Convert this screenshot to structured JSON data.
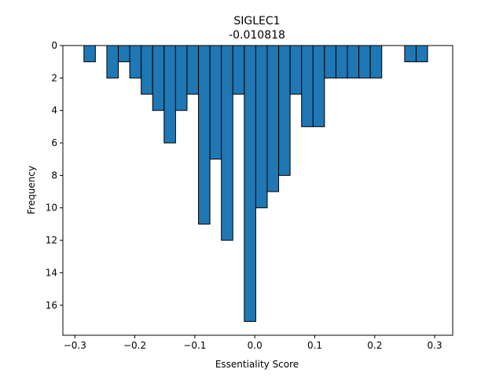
{
  "chart_data": {
    "type": "bar",
    "title": "SIGLEC1",
    "subtitle": "-0.010818",
    "xlabel": "Essentiality Score",
    "ylabel": "Frequency",
    "xlim": [
      -0.32,
      0.33
    ],
    "ylim": [
      17.85,
      0
    ],
    "y_inverted": true,
    "grid": false,
    "bar_color": "#1f77b4",
    "edge_color": "#000000",
    "bin_width": 0.0191,
    "x_ticks": [
      -0.3,
      -0.2,
      -0.1,
      0.0,
      0.1,
      0.2,
      0.3
    ],
    "x_tick_labels": [
      "−0.3",
      "−0.2",
      "−0.1",
      "0.0",
      "0.1",
      "0.2",
      "0.3"
    ],
    "y_ticks": [
      0,
      2,
      4,
      6,
      8,
      10,
      12,
      14,
      16
    ],
    "y_tick_labels": [
      "0",
      "2",
      "4",
      "6",
      "8",
      "10",
      "12",
      "14",
      "16"
    ],
    "bins": [
      {
        "x0": -0.2849,
        "value": 1
      },
      {
        "x0": -0.2658,
        "value": 0
      },
      {
        "x0": -0.2467,
        "value": 2
      },
      {
        "x0": -0.2276,
        "value": 1
      },
      {
        "x0": -0.2085,
        "value": 2
      },
      {
        "x0": -0.1894,
        "value": 3
      },
      {
        "x0": -0.1703,
        "value": 4
      },
      {
        "x0": -0.1512,
        "value": 6
      },
      {
        "x0": -0.1321,
        "value": 4
      },
      {
        "x0": -0.113,
        "value": 3
      },
      {
        "x0": -0.0939,
        "value": 11
      },
      {
        "x0": -0.0748,
        "value": 7
      },
      {
        "x0": -0.0557,
        "value": 12
      },
      {
        "x0": -0.0366,
        "value": 3
      },
      {
        "x0": -0.0175,
        "value": 17
      },
      {
        "x0": 0.0016,
        "value": 10
      },
      {
        "x0": 0.0207,
        "value": 9
      },
      {
        "x0": 0.0398,
        "value": 8
      },
      {
        "x0": 0.0589,
        "value": 3
      },
      {
        "x0": 0.078,
        "value": 5
      },
      {
        "x0": 0.0971,
        "value": 5
      },
      {
        "x0": 0.1162,
        "value": 2
      },
      {
        "x0": 0.1353,
        "value": 2
      },
      {
        "x0": 0.1544,
        "value": 2
      },
      {
        "x0": 0.1735,
        "value": 2
      },
      {
        "x0": 0.1926,
        "value": 2
      },
      {
        "x0": 0.2117,
        "value": 0
      },
      {
        "x0": 0.2308,
        "value": 0
      },
      {
        "x0": 0.2499,
        "value": 1
      },
      {
        "x0": 0.269,
        "value": 1
      }
    ]
  }
}
